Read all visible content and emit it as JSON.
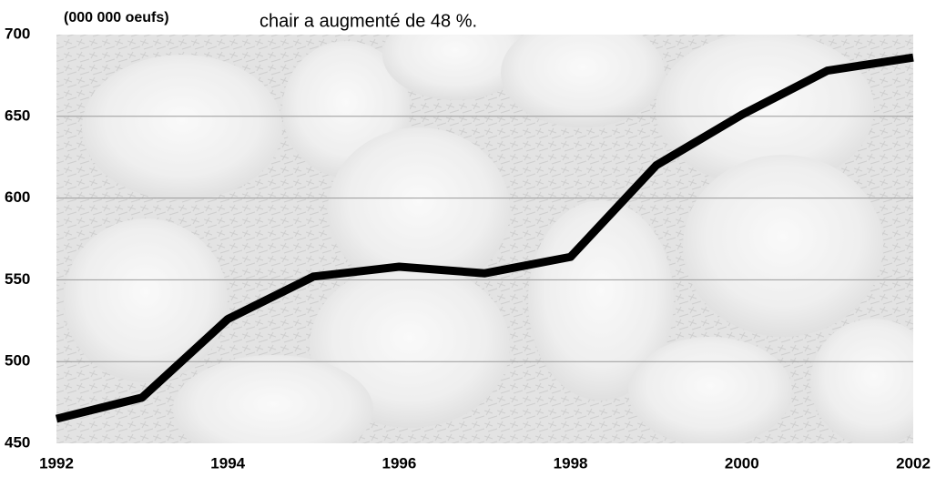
{
  "chart_data": {
    "type": "line",
    "annotation": "chair a augmenté de 48 %.",
    "y_label": "(000 000 oeufs)",
    "x": [
      1992,
      1993,
      1994,
      1995,
      1996,
      1997,
      1998,
      1999,
      2000,
      2001,
      2002
    ],
    "values": [
      465,
      478,
      526,
      552,
      558,
      554,
      564,
      620,
      651,
      678,
      686
    ],
    "color": "#000000",
    "xlim": [
      1992,
      2002
    ],
    "xticks": [
      1992,
      1994,
      1996,
      1998,
      2000,
      2002
    ],
    "ylim": [
      450,
      700
    ],
    "yticks": [
      450,
      500,
      550,
      600,
      650,
      700
    ],
    "grid": true
  }
}
